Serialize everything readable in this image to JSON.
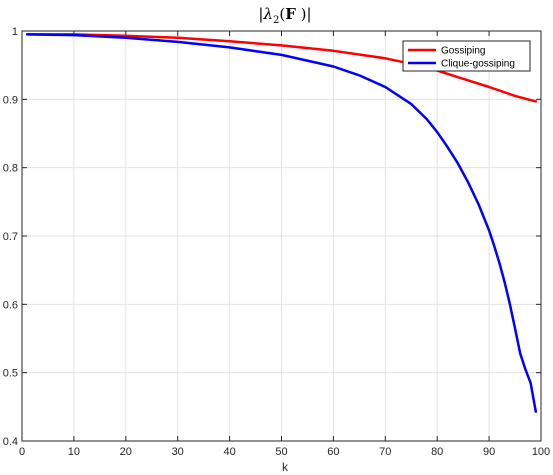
{
  "chart_data": {
    "type": "line",
    "title": "|λ2(F )|",
    "xlabel": "k",
    "ylabel": "",
    "xlim": [
      0,
      100
    ],
    "ylim": [
      0.4,
      1.0
    ],
    "xticks": [
      0,
      10,
      20,
      30,
      40,
      50,
      60,
      70,
      80,
      90,
      100
    ],
    "yticks": [
      0.4,
      0.5,
      0.6,
      0.7,
      0.8,
      0.9,
      1.0
    ],
    "xtick_labels": [
      "0",
      "10",
      "20",
      "30",
      "40",
      "50",
      "60",
      "70",
      "80",
      "90",
      "100"
    ],
    "ytick_labels": [
      "0.4",
      "0.5",
      "0.6",
      "0.7",
      "0.8",
      "0.9",
      "1"
    ],
    "grid": true,
    "legend_position": "top-right",
    "series": [
      {
        "name": "Gossiping",
        "color": "#ff0000",
        "x": [
          1,
          10,
          20,
          30,
          40,
          50,
          60,
          70,
          75,
          80,
          85,
          90,
          95,
          99
        ],
        "y": [
          0.995,
          0.995,
          0.993,
          0.99,
          0.985,
          0.979,
          0.971,
          0.96,
          0.952,
          0.942,
          0.93,
          0.918,
          0.905,
          0.897
        ]
      },
      {
        "name": "Clique-gossiping",
        "color": "#0000ff",
        "x": [
          1,
          10,
          20,
          30,
          40,
          50,
          60,
          65,
          70,
          75,
          78,
          80,
          82,
          84,
          86,
          88,
          90,
          91,
          92,
          93,
          94,
          95,
          96,
          97,
          98,
          99
        ],
        "y": [
          0.995,
          0.994,
          0.99,
          0.984,
          0.976,
          0.965,
          0.948,
          0.935,
          0.918,
          0.893,
          0.871,
          0.852,
          0.83,
          0.806,
          0.778,
          0.746,
          0.708,
          0.685,
          0.66,
          0.632,
          0.6,
          0.565,
          0.528,
          0.505,
          0.485,
          0.443
        ]
      }
    ]
  }
}
